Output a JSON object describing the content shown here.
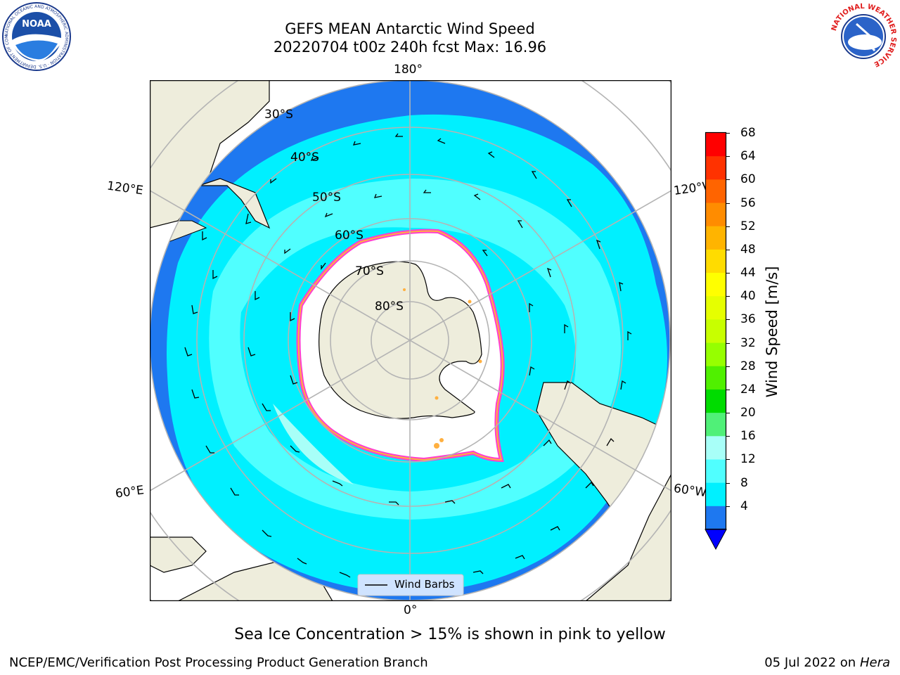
{
  "header": {
    "title_line1": "GEFS MEAN Antarctic Wind Speed",
    "title_line2": "20220704 t00z 240h fcst   Max: 16.96",
    "noaa_logo_text": "NOAA",
    "noaa_ring_text": "NATIONAL OCEANIC AND ATMOSPHERIC ADMINISTRATION · U.S. DEPARTMENT OF COMMERCE",
    "nws_ring_text": "NATIONAL WEATHER SERVICE"
  },
  "map": {
    "projection": "south polar stereographic",
    "lon_labels": [
      "180°",
      "120°E",
      "120°W",
      "60°E",
      "60°W",
      "0°"
    ],
    "lat_labels": [
      "30°S",
      "40°S",
      "50°S",
      "60°S",
      "70°S",
      "80°S"
    ],
    "legend_label": "Wind Barbs",
    "colors": {
      "land": "#eeeddc",
      "sea_ice": "#ffffff",
      "ice_edge": "#ff3fd0",
      "ice_edge_inner": "#ffb040",
      "grid": "#b4b4b4",
      "wind_4_8": "#1e78f0",
      "wind_8_12": "#00f0ff",
      "wind_12_16": "#50ffff",
      "wind_16_20": "#a8fff8"
    }
  },
  "colorbar": {
    "label": "Wind Speed [m/s]",
    "ticks": [
      "68",
      "64",
      "60",
      "56",
      "52",
      "48",
      "44",
      "40",
      "36",
      "32",
      "28",
      "24",
      "20",
      "16",
      "12",
      "8",
      "4"
    ],
    "colors": [
      "#ff0000",
      "#ff3200",
      "#ff6400",
      "#ff8c00",
      "#ffb400",
      "#ffdc00",
      "#ffff00",
      "#e6ff00",
      "#c8ff00",
      "#96ff00",
      "#50f000",
      "#00dc00",
      "#50f078",
      "#a8fff8",
      "#50ffff",
      "#00f0ff",
      "#1e78f0"
    ],
    "under_color": "#0000ff"
  },
  "caption": "Sea Ice Concentration > 15% is shown in pink to yellow",
  "footer": {
    "left": "NCEP/EMC/Verification Post Processing Product Generation Branch",
    "right_prefix": "05 Jul 2022 on ",
    "right_italic": "Hera"
  }
}
